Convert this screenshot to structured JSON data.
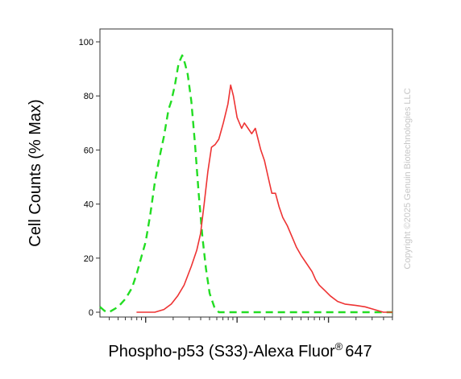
{
  "chart_data": {
    "type": "line",
    "title": "",
    "xlabel": "Phospho-p53 (S33)-Alexa Fluor",
    "xlabel_superscript": "®",
    "xlabel_suffix": "647",
    "ylabel": "Cell Counts (% Max)",
    "ylim": [
      0,
      105
    ],
    "yticks": [
      0,
      20,
      40,
      60,
      80,
      100
    ],
    "ytick_labels": [
      "0",
      "20",
      "40",
      "60",
      "80",
      "100"
    ],
    "x_scale": "log",
    "x_tick_labels": "none",
    "xlim_log10": [
      1.5,
      4.7
    ],
    "grid": false,
    "legend": "none",
    "watermark": "Copyright ©2025 Genuin Biotechnologies LLC",
    "series": [
      {
        "color": "#22dd22",
        "style": "dashed",
        "points": [
          [
            1.5,
            2
          ],
          [
            1.55,
            0.5
          ],
          [
            1.6,
            0
          ],
          [
            1.7,
            2
          ],
          [
            1.78,
            5
          ],
          [
            1.85,
            9
          ],
          [
            1.9,
            14
          ],
          [
            1.95,
            20
          ],
          [
            2.0,
            26
          ],
          [
            2.05,
            36
          ],
          [
            2.1,
            48
          ],
          [
            2.15,
            57
          ],
          [
            2.2,
            65
          ],
          [
            2.25,
            75
          ],
          [
            2.28,
            78
          ],
          [
            2.32,
            84
          ],
          [
            2.36,
            92
          ],
          [
            2.4,
            95
          ],
          [
            2.43,
            92
          ],
          [
            2.46,
            88
          ],
          [
            2.5,
            78
          ],
          [
            2.54,
            62
          ],
          [
            2.58,
            44
          ],
          [
            2.62,
            28
          ],
          [
            2.66,
            16
          ],
          [
            2.7,
            7
          ],
          [
            2.75,
            2
          ],
          [
            2.8,
            0
          ],
          [
            4.7,
            0
          ]
        ]
      },
      {
        "color": "#ee3333",
        "style": "solid",
        "points": [
          [
            1.9,
            0
          ],
          [
            2.1,
            0
          ],
          [
            2.2,
            1
          ],
          [
            2.28,
            3
          ],
          [
            2.35,
            6
          ],
          [
            2.42,
            10
          ],
          [
            2.5,
            17
          ],
          [
            2.56,
            23
          ],
          [
            2.6,
            29
          ],
          [
            2.64,
            40
          ],
          [
            2.68,
            52
          ],
          [
            2.72,
            61
          ],
          [
            2.76,
            62
          ],
          [
            2.8,
            64
          ],
          [
            2.85,
            70
          ],
          [
            2.9,
            77
          ],
          [
            2.93,
            84
          ],
          [
            2.96,
            80
          ],
          [
            3.0,
            72
          ],
          [
            3.05,
            68
          ],
          [
            3.08,
            70
          ],
          [
            3.12,
            68
          ],
          [
            3.16,
            66
          ],
          [
            3.2,
            68
          ],
          [
            3.26,
            60
          ],
          [
            3.3,
            56
          ],
          [
            3.34,
            50
          ],
          [
            3.38,
            44
          ],
          [
            3.42,
            44
          ],
          [
            3.46,
            39
          ],
          [
            3.5,
            35
          ],
          [
            3.55,
            32
          ],
          [
            3.6,
            28
          ],
          [
            3.65,
            24
          ],
          [
            3.7,
            21
          ],
          [
            3.76,
            18
          ],
          [
            3.82,
            15
          ],
          [
            3.86,
            12
          ],
          [
            3.9,
            10
          ],
          [
            3.96,
            8
          ],
          [
            4.02,
            6
          ],
          [
            4.1,
            4
          ],
          [
            4.18,
            3
          ],
          [
            4.3,
            2.5
          ],
          [
            4.4,
            2
          ],
          [
            4.5,
            1
          ],
          [
            4.6,
            0
          ],
          [
            4.7,
            0
          ]
        ]
      }
    ]
  }
}
